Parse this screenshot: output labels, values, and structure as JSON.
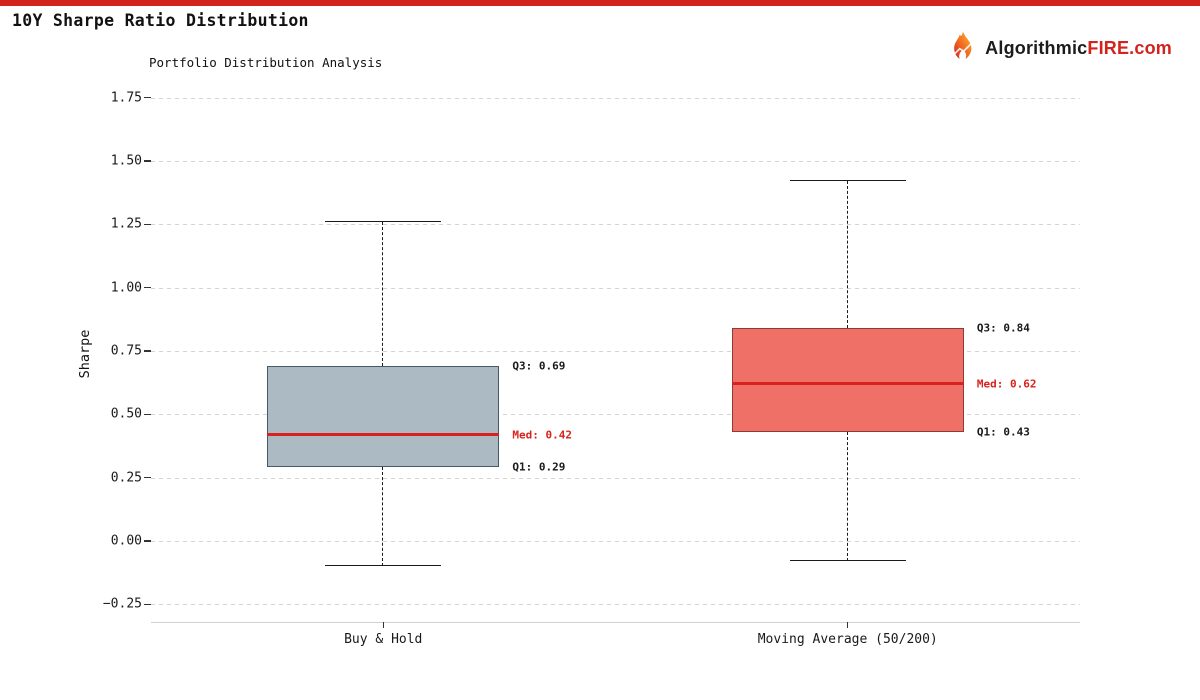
{
  "page": {
    "title": "10Y Sharpe Ratio Distribution",
    "accent_color": "#d2231d",
    "logo": {
      "brand_prefix": "Algorithmic",
      "brand_suffix": "FIRE.com"
    }
  },
  "chart_data": {
    "type": "boxplot",
    "title": "Portfolio Distribution Analysis",
    "ylabel": "Sharpe",
    "ylim": [
      -0.32,
      1.8
    ],
    "grid": "horizontal-dashed",
    "legend": "none",
    "yticks": [
      {
        "value": 1.75,
        "label": "1.75"
      },
      {
        "value": 1.5,
        "label": "1.50"
      },
      {
        "value": 1.25,
        "label": "1.25"
      },
      {
        "value": 1.0,
        "label": "1.00"
      },
      {
        "value": 0.75,
        "label": "0.75"
      },
      {
        "value": 0.5,
        "label": "0.50"
      },
      {
        "value": 0.25,
        "label": "0.25"
      },
      {
        "value": 0.0,
        "label": "0.00"
      },
      {
        "value": -0.25,
        "label": "−0.25"
      }
    ],
    "categories": [
      "Buy & Hold",
      "Moving Average (50/200)"
    ],
    "boxes": [
      {
        "category": "Buy & Hold",
        "whisker_high": 1.26,
        "q3": 0.69,
        "median": 0.42,
        "q1": 0.29,
        "whisker_low": -0.1,
        "fill_color": "#abbac3",
        "edge_color": "#455a64",
        "labels": {
          "q3": "Q3: 0.69",
          "med": "Med: 0.42",
          "q1": "Q1: 0.29"
        }
      },
      {
        "category": "Moving Average (50/200)",
        "whisker_high": 1.42,
        "q3": 0.84,
        "median": 0.62,
        "q1": 0.43,
        "whisker_low": -0.08,
        "fill_color": "#ee7066",
        "edge_color": "#8f3a34",
        "labels": {
          "q3": "Q3: 0.84",
          "med": "Med: 0.62",
          "q1": "Q1: 0.43"
        }
      }
    ],
    "median_color": "#d7231d",
    "annotation_color": "#1a1a1a",
    "whisker_color": "#1a1a1a"
  }
}
